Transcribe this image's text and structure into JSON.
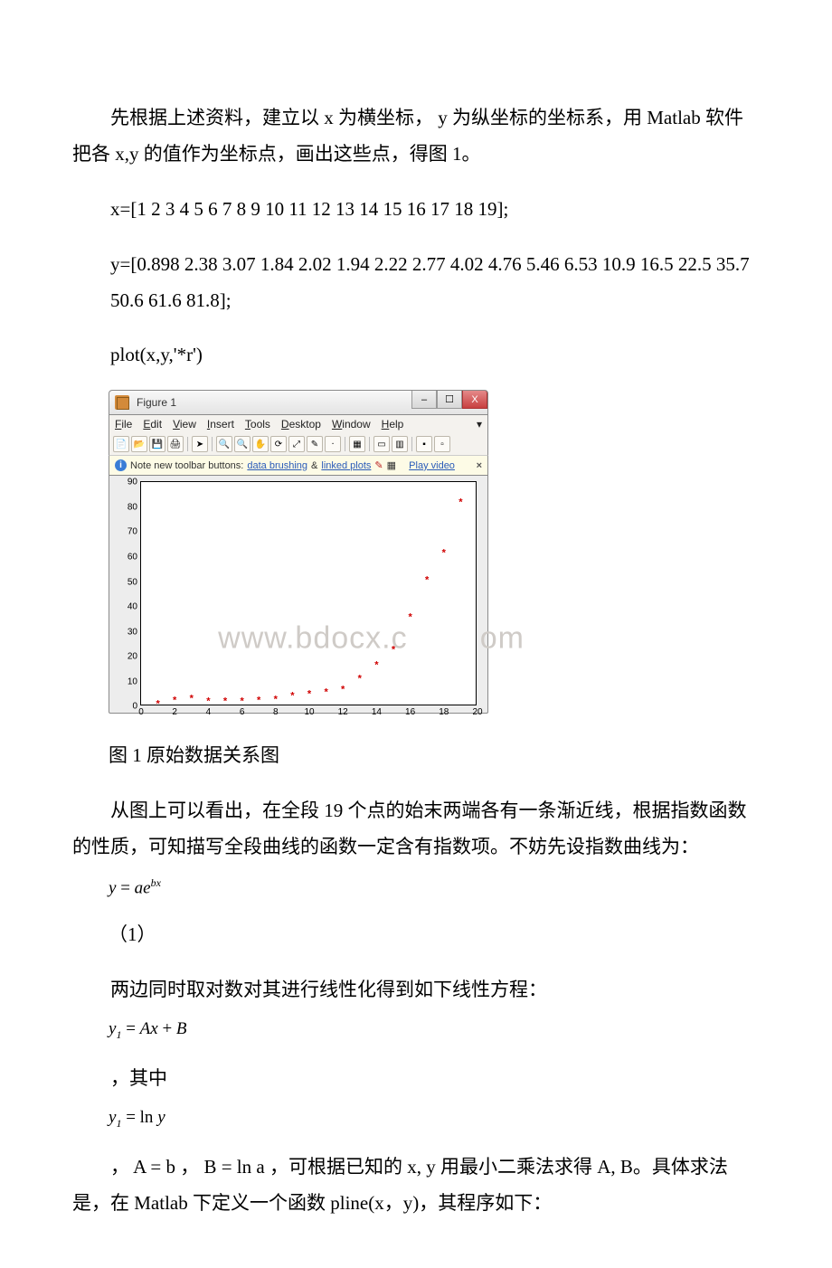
{
  "text": {
    "para1": "先根据上述资料，建立以 x 为横坐标， y 为纵坐标的坐标系，用 Matlab 软件把各 x,y 的值作为坐标点，画出这些点，得图 1。",
    "code1": "x=[1 2 3 4 5 6 7 8 9 10 11 12 13 14 15 16 17 18 19];",
    "code2": "y=[0.898 2.38 3.07 1.84 2.02 1.94 2.22 2.77 4.02 4.76 5.46 6.53 10.9 16.5 22.5 35.7 50.6 61.6 81.8];",
    "code3": "plot(x,y,'*r')",
    "caption1": "图 1 原始数据关系图",
    "para2": "从图上可以看出，在全段 19 个点的始末两端各有一条渐近线，根据指数函数的性质，可知描写全段曲线的函数一定含有指数项。不妨先设指数曲线为：",
    "eqnum1": "（1）",
    "para3": "两边同时取对数对其进行线性化得到如下线性方程：",
    "para4": "，其中",
    "para5": "， A = b ， B = ln a ，可根据已知的 x, y 用最小二乘法求得 A, B。具体求法是，在 Matlab 下定义一个函数 pline(x，y)，其程序如下："
  },
  "figure": {
    "title": "Figure 1",
    "menus": {
      "file": "File",
      "edit": "Edit",
      "view": "View",
      "insert": "Insert",
      "tools": "Tools",
      "desktop": "Desktop",
      "window": "Window",
      "help": "Help"
    },
    "notebar": {
      "lead": "Note new toolbar buttons:",
      "link1": "data brushing",
      "amp": "&",
      "link2": "linked plots",
      "play": "Play video",
      "x": "×"
    },
    "winbtn": {
      "min": "–",
      "max": "☐",
      "close": "X"
    },
    "watermark_left": "www.b",
    "watermark_mid": "ocx.",
    "watermark_right": "om",
    "axes": {
      "xlim": [
        0,
        20
      ],
      "ylim": [
        0,
        90
      ],
      "xtick_step": 2,
      "ytick_step": 10,
      "yticks": [
        "0",
        "10",
        "20",
        "30",
        "40",
        "50",
        "60",
        "70",
        "80",
        "90"
      ],
      "xticks": [
        "0",
        "2",
        "4",
        "6",
        "8",
        "10",
        "12",
        "14",
        "16",
        "18",
        "20"
      ]
    },
    "chart": {
      "type": "scatter",
      "marker": "*",
      "marker_color": "#d00000",
      "marker_size": 11,
      "background_color": "#ffffff",
      "frame_color": "#000000",
      "panel_color": "#ededed",
      "x": [
        1,
        2,
        3,
        4,
        5,
        6,
        7,
        8,
        9,
        10,
        11,
        12,
        13,
        14,
        15,
        16,
        17,
        18,
        19
      ],
      "y": [
        0.898,
        2.38,
        3.07,
        1.84,
        2.02,
        1.94,
        2.22,
        2.77,
        4.02,
        4.76,
        5.46,
        6.53,
        10.9,
        16.5,
        22.5,
        35.7,
        50.6,
        61.6,
        81.8
      ]
    }
  },
  "equations": {
    "eq1": {
      "y": "y",
      "eq": " = ",
      "a": "a",
      "e": "e",
      "bx": "bx"
    },
    "eq2": {
      "y1": "y",
      "sub1": "1",
      "eq": " = ",
      "A": "A",
      "x": "x",
      "plus": " + ",
      "B": "B"
    },
    "eq3": {
      "y1": "y",
      "sub1": "1",
      "eq": " = ln ",
      "y": "y"
    }
  }
}
